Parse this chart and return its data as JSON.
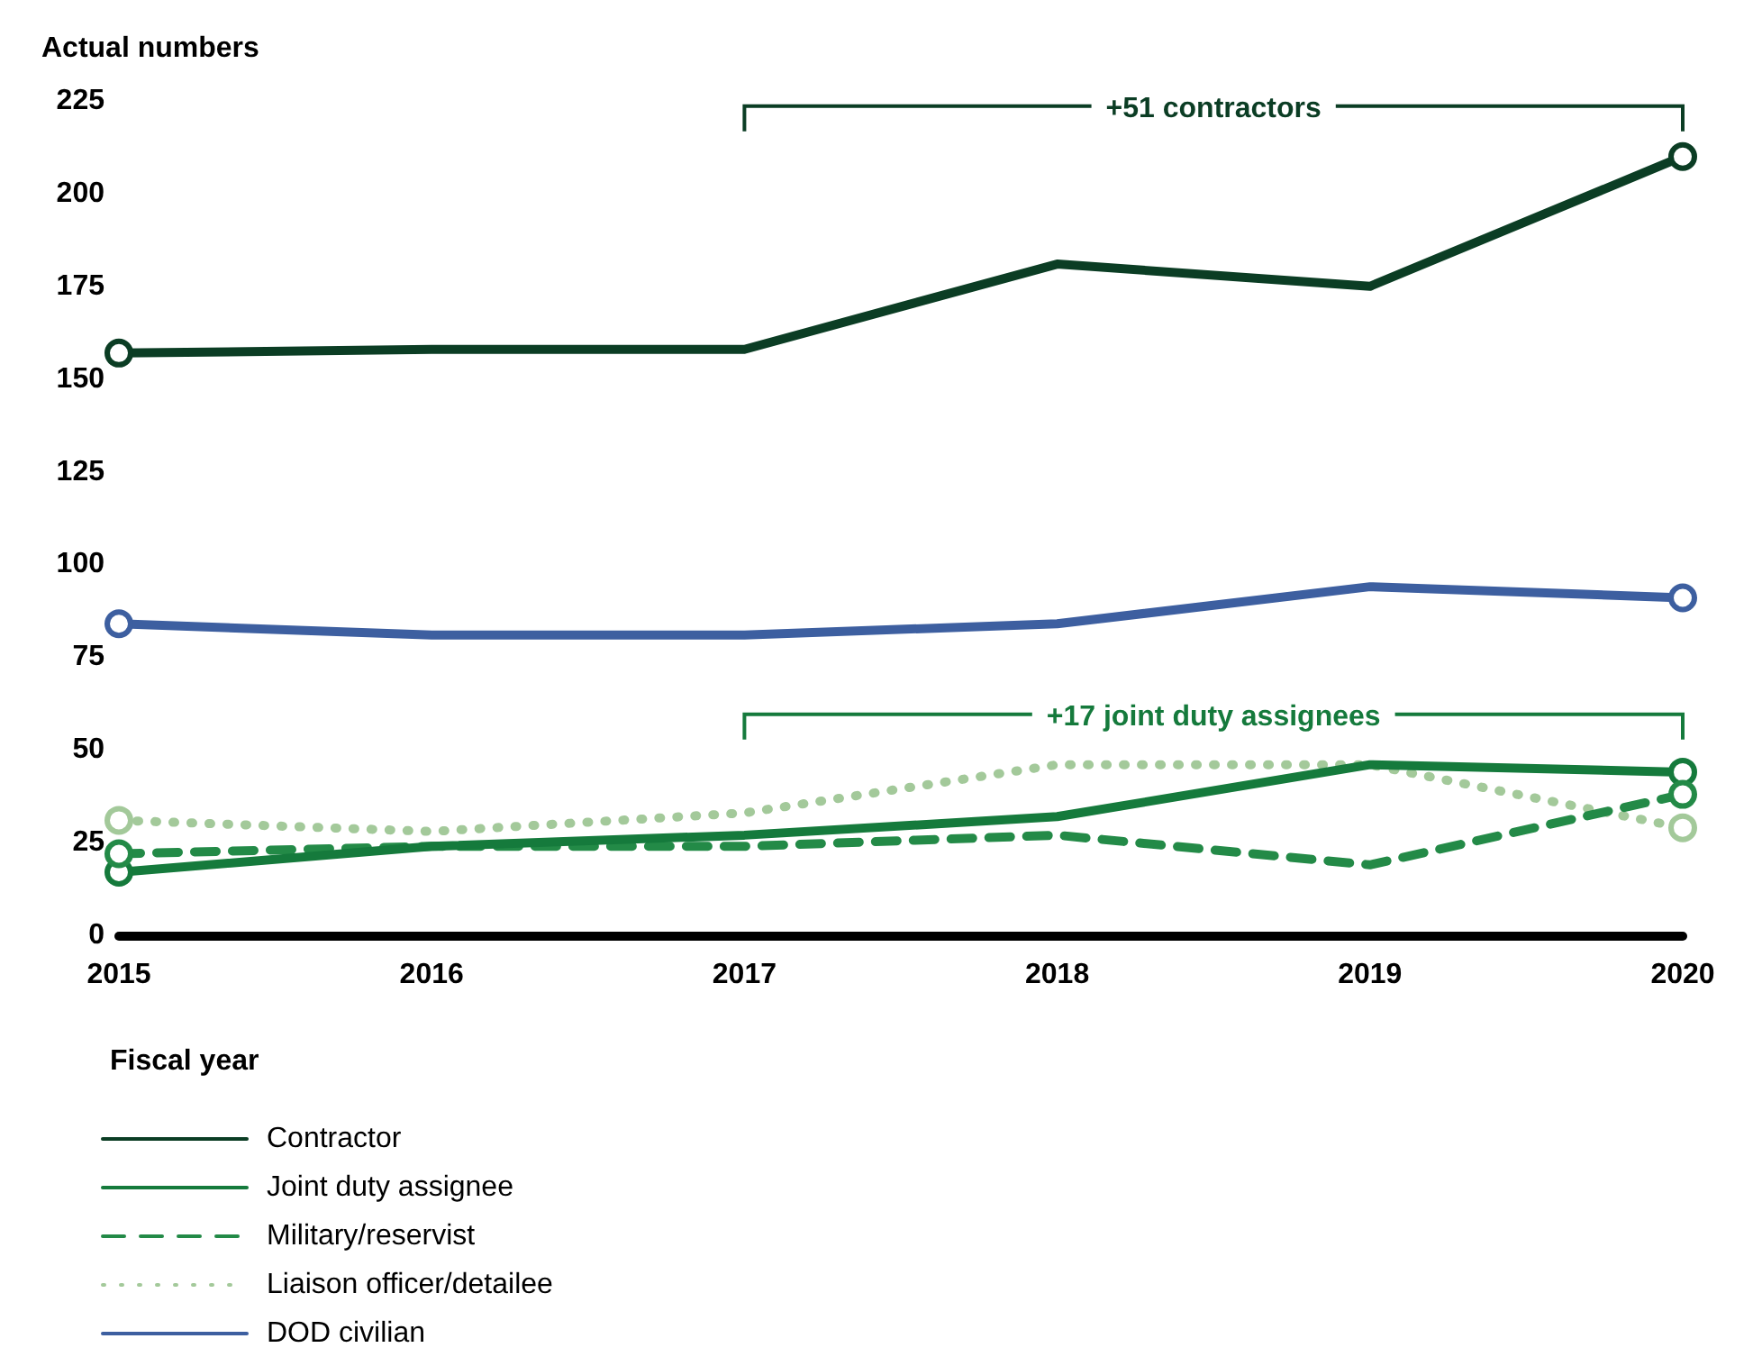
{
  "chart_data": {
    "type": "line",
    "ylabel": "Actual numbers",
    "xlabel": "Fiscal year",
    "categories": [
      "2015",
      "2016",
      "2017",
      "2018",
      "2019",
      "2020"
    ],
    "series": [
      {
        "name": "Contractor",
        "color": "#0b3d24",
        "line_style": "solid",
        "values": [
          157,
          158,
          158,
          181,
          175,
          210
        ]
      },
      {
        "name": "Joint duty assignee",
        "color": "#157a3c",
        "line_style": "solid",
        "values": [
          17,
          24,
          27,
          32,
          46,
          44
        ]
      },
      {
        "name": "Military/reservist",
        "color": "#238a47",
        "line_style": "dashed",
        "values": [
          22,
          24,
          24,
          27,
          19,
          38
        ]
      },
      {
        "name": "Liaison officer/detailee",
        "color": "#a3c99a",
        "line_style": "dotted",
        "values": [
          31,
          28,
          33,
          46,
          46,
          29
        ]
      },
      {
        "name": "DOD civilian",
        "color": "#3d5fa0",
        "line_style": "solid",
        "values": [
          84,
          81,
          81,
          84,
          94,
          91
        ]
      }
    ],
    "ylim": [
      0,
      225
    ],
    "yticks": [
      0,
      25,
      50,
      75,
      100,
      125,
      150,
      175,
      200,
      225
    ],
    "grid": false,
    "legend": "bottom",
    "annotations": [
      "+51 contractors",
      "+17 joint duty assignees"
    ]
  }
}
